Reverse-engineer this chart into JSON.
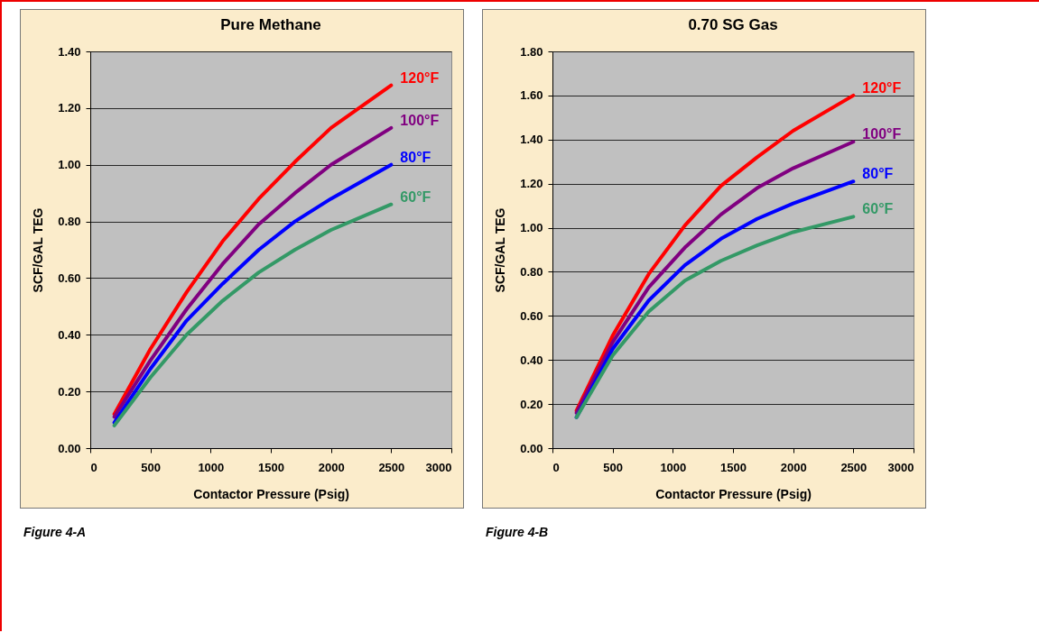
{
  "chart_data": [
    {
      "type": "line",
      "title": "Pure Methane",
      "xlabel": "Contactor Pressure (Psig)",
      "ylabel": "SCF/GAL TEG",
      "x": [
        200,
        500,
        800,
        1100,
        1400,
        1700,
        2000,
        2500
      ],
      "series": [
        {
          "name": "120°F",
          "color": "#ff0000",
          "values": [
            0.12,
            0.35,
            0.55,
            0.73,
            0.88,
            1.01,
            1.13,
            1.28
          ]
        },
        {
          "name": "100°F",
          "color": "#800080",
          "values": [
            0.11,
            0.31,
            0.49,
            0.65,
            0.79,
            0.9,
            1.0,
            1.13
          ]
        },
        {
          "name": "80°F",
          "color": "#0000ff",
          "values": [
            0.09,
            0.28,
            0.45,
            0.58,
            0.7,
            0.8,
            0.88,
            1.0
          ]
        },
        {
          "name": "60°F",
          "color": "#339966",
          "values": [
            0.08,
            0.25,
            0.4,
            0.52,
            0.62,
            0.7,
            0.77,
            0.86
          ]
        }
      ],
      "xlim": [
        0,
        3000
      ],
      "xticks": [
        0,
        500,
        1000,
        1500,
        2000,
        2500,
        3000
      ],
      "ylim": [
        0,
        1.4
      ],
      "yticks": [
        {
          "value": 0,
          "label": "0.00"
        },
        {
          "value": 0.2,
          "label": "0.20"
        },
        {
          "value": 0.4,
          "label": "0.40"
        },
        {
          "value": 0.6,
          "label": "0.60"
        },
        {
          "value": 0.8,
          "label": "0.80"
        },
        {
          "value": 1,
          "label": "1.00"
        },
        {
          "value": 1.2,
          "label": "1.20"
        },
        {
          "value": 1.4,
          "label": "1.40"
        }
      ],
      "grid": "y",
      "legend": false,
      "line_style": "solid",
      "annotations": [
        "Figure 4-A"
      ]
    },
    {
      "type": "line",
      "title": "0.70 SG  Gas",
      "xlabel": "Contactor Pressure (Psig)",
      "ylabel": "SCF/GAL TEG",
      "x": [
        200,
        500,
        800,
        1100,
        1400,
        1700,
        2000,
        2500
      ],
      "series": [
        {
          "name": "120°F",
          "color": "#ff0000",
          "values": [
            0.17,
            0.51,
            0.79,
            1.01,
            1.19,
            1.32,
            1.44,
            1.6
          ]
        },
        {
          "name": "100°F",
          "color": "#800080",
          "values": [
            0.16,
            0.48,
            0.73,
            0.91,
            1.06,
            1.18,
            1.27,
            1.39
          ]
        },
        {
          "name": "80°F",
          "color": "#0000ff",
          "values": [
            0.14,
            0.45,
            0.67,
            0.83,
            0.95,
            1.04,
            1.11,
            1.21
          ]
        },
        {
          "name": "60°F",
          "color": "#339966",
          "values": [
            0.14,
            0.42,
            0.62,
            0.76,
            0.85,
            0.92,
            0.98,
            1.05
          ]
        }
      ],
      "xlim": [
        0,
        3000
      ],
      "xticks": [
        0,
        500,
        1000,
        1500,
        2000,
        2500,
        3000
      ],
      "ylim": [
        0,
        1.8
      ],
      "yticks": [
        {
          "value": 0,
          "label": "0.00"
        },
        {
          "value": 0.2,
          "label": "0.20"
        },
        {
          "value": 0.4,
          "label": "0.40"
        },
        {
          "value": 0.6,
          "label": "0.60"
        },
        {
          "value": 0.8,
          "label": "0.80"
        },
        {
          "value": 1,
          "label": "1.00"
        },
        {
          "value": 1.2,
          "label": "1.20"
        },
        {
          "value": 1.4,
          "label": "1.40"
        },
        {
          "value": 1.6,
          "label": "1.60"
        },
        {
          "value": 1.8,
          "label": "1.80"
        }
      ],
      "grid": "y",
      "legend": false,
      "line_style": "solid",
      "annotations": [
        "Figure 4-B"
      ]
    }
  ]
}
